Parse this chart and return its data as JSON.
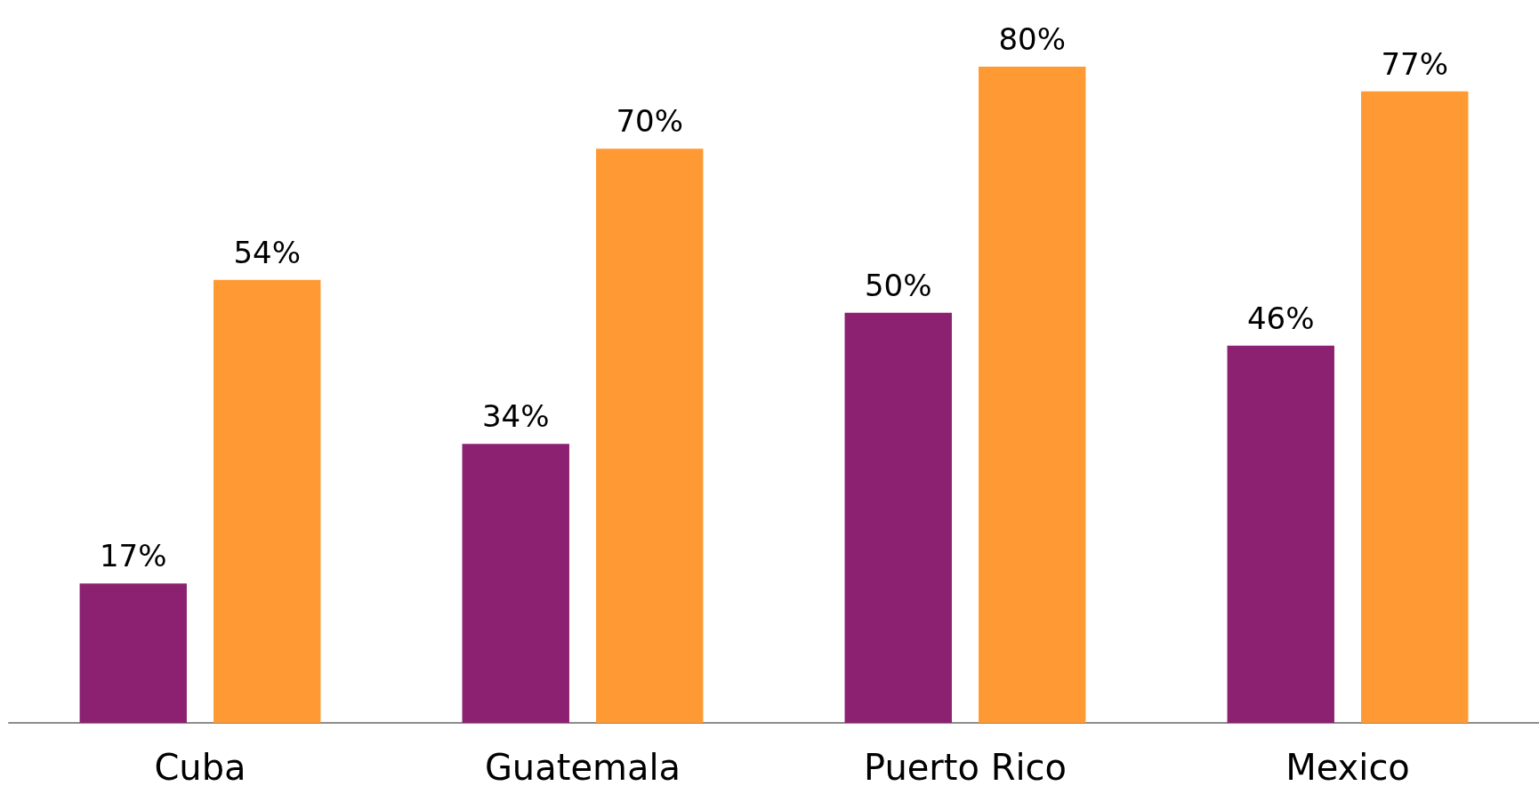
{
  "chart_data": {
    "type": "bar",
    "categories": [
      "Cuba",
      "Guatemala",
      "Puerto Rico",
      "Mexico"
    ],
    "series": [
      {
        "color": "#8b2170",
        "values": [
          17,
          34,
          50,
          46
        ],
        "value_labels": [
          "17%",
          "34%",
          "50%",
          "46%"
        ]
      },
      {
        "color": "#ff9933",
        "values": [
          54,
          70,
          80,
          77
        ],
        "value_labels": [
          "54%",
          "70%",
          "80%",
          "77%"
        ]
      }
    ],
    "grid": false
  }
}
